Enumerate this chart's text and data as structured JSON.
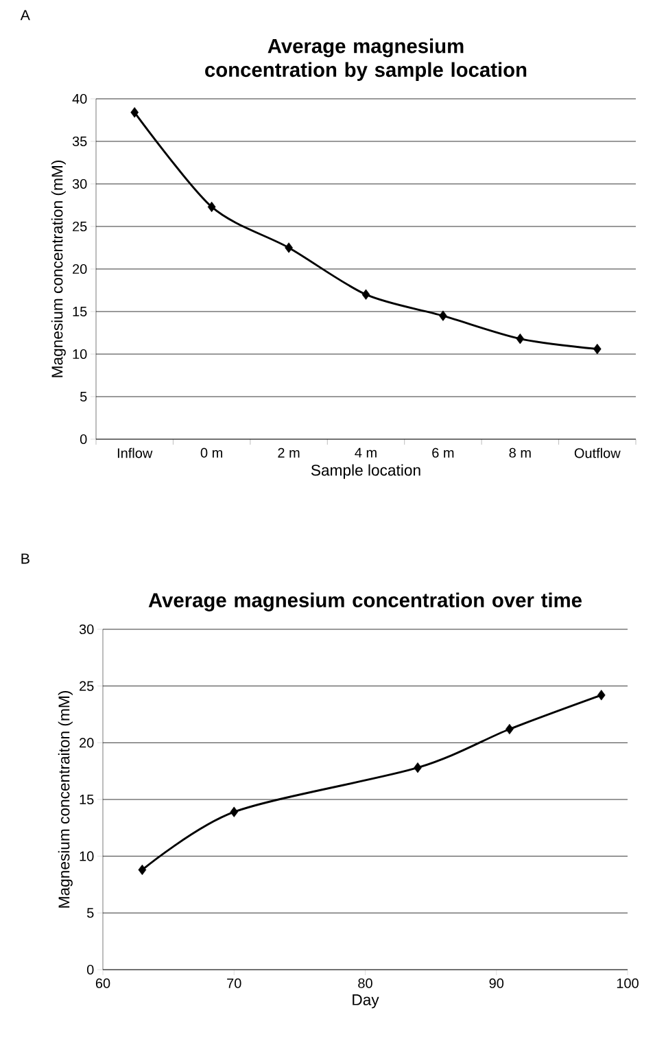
{
  "chart_data": [
    {
      "type": "line",
      "title": "Average magnesium concentration by sample location",
      "xlabel": "Sample location",
      "ylabel": "Magnesium concentration (mM)",
      "annotations": [
        "A"
      ],
      "categories": [
        "Inflow",
        "0 m",
        "2 m",
        "4 m",
        "6 m",
        "8 m",
        "Outflow"
      ],
      "series": [
        {
          "color": "#000000",
          "values": [
            38.4,
            27.3,
            22.5,
            17.0,
            14.5,
            11.8,
            10.6
          ]
        }
      ],
      "ylim": [
        0,
        40
      ],
      "yticks": [
        0,
        5,
        10,
        15,
        20,
        25,
        30,
        35,
        40
      ],
      "grid": "y",
      "marker": "diamond",
      "line_style": "solid"
    },
    {
      "type": "line",
      "title": "Average magnesium concentration over time",
      "xlabel": "Day",
      "ylabel": "Magnesium concentraiton  (mM)",
      "annotations": [
        "B"
      ],
      "x": [
        63,
        70,
        84,
        91,
        98
      ],
      "series": [
        {
          "color": "#000000",
          "values": [
            8.8,
            13.9,
            17.8,
            21.2,
            24.2
          ]
        }
      ],
      "xlim": [
        60,
        100
      ],
      "xticks": [
        60,
        70,
        80,
        90,
        100
      ],
      "ylim": [
        0,
        30
      ],
      "yticks": [
        0,
        5,
        10,
        15,
        20,
        25,
        30
      ],
      "grid": "y",
      "marker": "diamond",
      "line_style": "solid"
    }
  ]
}
